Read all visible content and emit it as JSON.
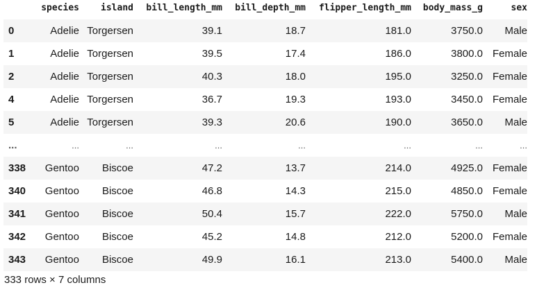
{
  "table": {
    "columns": [
      "species",
      "island",
      "bill_length_mm",
      "bill_depth_mm",
      "flipper_length_mm",
      "body_mass_g",
      "sex"
    ],
    "rows": [
      {
        "index": "0",
        "cells": [
          "Adelie",
          "Torgersen",
          "39.1",
          "18.7",
          "181.0",
          "3750.0",
          "Male"
        ]
      },
      {
        "index": "1",
        "cells": [
          "Adelie",
          "Torgersen",
          "39.5",
          "17.4",
          "186.0",
          "3800.0",
          "Female"
        ]
      },
      {
        "index": "2",
        "cells": [
          "Adelie",
          "Torgersen",
          "40.3",
          "18.0",
          "195.0",
          "3250.0",
          "Female"
        ]
      },
      {
        "index": "4",
        "cells": [
          "Adelie",
          "Torgersen",
          "36.7",
          "19.3",
          "193.0",
          "3450.0",
          "Female"
        ]
      },
      {
        "index": "5",
        "cells": [
          "Adelie",
          "Torgersen",
          "39.3",
          "20.6",
          "190.0",
          "3650.0",
          "Male"
        ]
      },
      {
        "index": "...",
        "cells": [
          "...",
          "...",
          "...",
          "...",
          "...",
          "...",
          "..."
        ]
      },
      {
        "index": "338",
        "cells": [
          "Gentoo",
          "Biscoe",
          "47.2",
          "13.7",
          "214.0",
          "4925.0",
          "Female"
        ]
      },
      {
        "index": "340",
        "cells": [
          "Gentoo",
          "Biscoe",
          "46.8",
          "14.3",
          "215.0",
          "4850.0",
          "Female"
        ]
      },
      {
        "index": "341",
        "cells": [
          "Gentoo",
          "Biscoe",
          "50.4",
          "15.7",
          "222.0",
          "5750.0",
          "Male"
        ]
      },
      {
        "index": "342",
        "cells": [
          "Gentoo",
          "Biscoe",
          "45.2",
          "14.8",
          "212.0",
          "5200.0",
          "Female"
        ]
      },
      {
        "index": "343",
        "cells": [
          "Gentoo",
          "Biscoe",
          "49.9",
          "16.1",
          "213.0",
          "5400.0",
          "Male"
        ]
      }
    ]
  },
  "footer": {
    "shape_text": "333 rows × 7 columns"
  },
  "colors": {
    "stripe": "#f5f5f5",
    "text": "#1a1a1a"
  }
}
